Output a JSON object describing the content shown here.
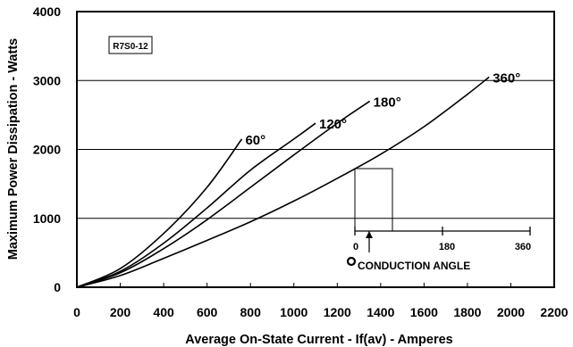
{
  "chart_data": {
    "type": "line",
    "title": "",
    "xlabel": "Average On-State Current - If(av) - Amperes",
    "ylabel": "Maximum Power Dissipation - Watts",
    "xlim": [
      0,
      2200
    ],
    "ylim": [
      0,
      4000
    ],
    "x_ticks": [
      "0",
      "200",
      "400",
      "600",
      "800",
      "1000",
      "1200",
      "1400",
      "1600",
      "1800",
      "2000",
      "2200"
    ],
    "y_ticks": [
      "0",
      "1000",
      "2000",
      "3000",
      "4000"
    ],
    "grid": true,
    "device_tag": "R7S0-12",
    "series": [
      {
        "name": "60°",
        "points": [
          [
            0,
            0
          ],
          [
            200,
            270
          ],
          [
            400,
            780
          ],
          [
            600,
            1450
          ],
          [
            760,
            2150
          ]
        ]
      },
      {
        "name": "120°",
        "points": [
          [
            0,
            0
          ],
          [
            200,
            230
          ],
          [
            400,
            640
          ],
          [
            600,
            1150
          ],
          [
            800,
            1700
          ],
          [
            1000,
            2150
          ],
          [
            1100,
            2380
          ]
        ]
      },
      {
        "name": "180°",
        "points": [
          [
            0,
            0
          ],
          [
            200,
            210
          ],
          [
            400,
            560
          ],
          [
            600,
            980
          ],
          [
            800,
            1450
          ],
          [
            1000,
            1920
          ],
          [
            1200,
            2380
          ],
          [
            1350,
            2700
          ]
        ]
      },
      {
        "name": "360°",
        "points": [
          [
            0,
            0
          ],
          [
            200,
            170
          ],
          [
            400,
            420
          ],
          [
            600,
            680
          ],
          [
            800,
            950
          ],
          [
            1000,
            1250
          ],
          [
            1200,
            1580
          ],
          [
            1400,
            1930
          ],
          [
            1600,
            2330
          ],
          [
            1800,
            2800
          ],
          [
            1900,
            3050
          ]
        ]
      }
    ],
    "inset": {
      "scale_labels": [
        "0",
        "180",
        "360"
      ],
      "legend": "CONDUCTION ANGLE"
    }
  }
}
